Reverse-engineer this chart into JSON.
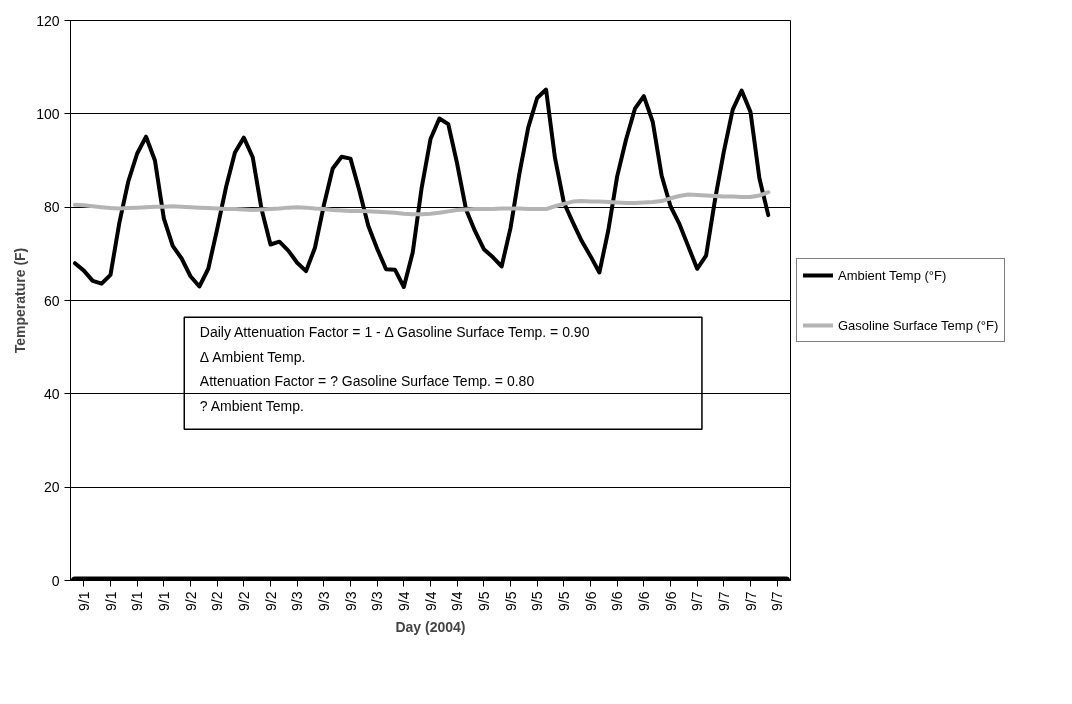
{
  "chart_data": {
    "type": "line",
    "xlabel": "Day (2004)",
    "ylabel": "Temperature (F)",
    "ylim": [
      0,
      120
    ],
    "yticks": [
      0,
      20,
      40,
      60,
      80,
      100,
      120
    ],
    "categories": [
      null,
      "9/1",
      null,
      null,
      "9/1",
      null,
      null,
      "9/1",
      null,
      null,
      "9/1",
      null,
      null,
      "9/2",
      null,
      null,
      "9/2",
      null,
      null,
      "9/2",
      null,
      null,
      "9/2",
      null,
      null,
      "9/3",
      null,
      null,
      "9/3",
      null,
      null,
      "9/3",
      null,
      null,
      "9/3",
      null,
      null,
      "9/4",
      null,
      null,
      "9/4",
      null,
      null,
      "9/4",
      null,
      null,
      "9/5",
      null,
      null,
      "9/5",
      null,
      null,
      "9/5",
      null,
      null,
      "9/5",
      null,
      null,
      "9/6",
      null,
      null,
      "9/6",
      null,
      null,
      "9/6",
      null,
      null,
      "9/6",
      null,
      null,
      "9/7",
      null,
      null,
      "9/7",
      null,
      null,
      "9/7",
      null,
      null,
      "9/7",
      null
    ],
    "grid": "y",
    "legend": "right",
    "marker": "none",
    "line_style": "solid",
    "series": [
      {
        "name": "Ambient Temp (°F)",
        "color": "#000000",
        "values": [
          68,
          66.4,
          64.2,
          63.6,
          65.5,
          76.7,
          85.5,
          91.5,
          95.1,
          90,
          77.6,
          71.7,
          69,
          65.2,
          63,
          66.8,
          75.3,
          84.3,
          91.7,
          94.9,
          90.7,
          79.5,
          72,
          72.6,
          70.7,
          68.1,
          66.3,
          71.3,
          80.4,
          88.3,
          90.8,
          90.4,
          83.5,
          76,
          71.1,
          66.7,
          66.6,
          62.9,
          70.3,
          84.1,
          94.6,
          99,
          97.8,
          89.3,
          79.5,
          74.9,
          71,
          69.3,
          67.3,
          75.5,
          87.2,
          97.1,
          103.4,
          105.2,
          90.6,
          81,
          76.8,
          72.8,
          69.5,
          66,
          75,
          86.6,
          94.5,
          101.1,
          103.8,
          98.3,
          86.8,
          80.2,
          76.4,
          71.6,
          66.8,
          69.6,
          81.5,
          91.9,
          100.9,
          105,
          100.4,
          86.2,
          78.3,
          null,
          null
        ]
      },
      {
        "name": "Gasoline Surface Temp (°F)",
        "color": "#b4b4b4",
        "values": [
          80.5,
          80.4,
          80.2,
          80.0,
          79.8,
          79.7,
          79.8,
          79.9,
          80.0,
          80.1,
          80.1,
          80.2,
          80.1,
          80.0,
          79.9,
          79.8,
          79.7,
          79.6,
          79.6,
          79.5,
          79.4,
          79.5,
          79.6,
          79.7,
          79.9,
          80.0,
          79.9,
          79.7,
          79.6,
          79.4,
          79.3,
          79.2,
          79.2,
          79.1,
          79.0,
          78.9,
          78.8,
          78.6,
          78.5,
          78.5,
          78.6,
          78.8,
          79.1,
          79.4,
          79.5,
          79.6,
          79.6,
          79.6,
          79.7,
          79.7,
          79.7,
          79.6,
          79.6,
          79.6,
          80.2,
          80.7,
          81.2,
          81.3,
          81.2,
          81.2,
          81.1,
          81.0,
          80.9,
          80.9,
          81.0,
          81.1,
          81.3,
          81.9,
          82.4,
          82.7,
          82.6,
          82.5,
          82.4,
          82.3,
          82.3,
          82.2,
          82.2,
          82.5,
          83.2,
          null,
          null
        ]
      },
      {
        "color": "#000000",
        "values": [
          0,
          0,
          0,
          0,
          0,
          0,
          0,
          0,
          0,
          0,
          0,
          0,
          0,
          0,
          0,
          0,
          0,
          0,
          0,
          0,
          0,
          0,
          0,
          0,
          0,
          0,
          0,
          0,
          0,
          0,
          0,
          0,
          0,
          0,
          0,
          0,
          0,
          0,
          0,
          0,
          0,
          0,
          0,
          0,
          0,
          0,
          0,
          0,
          0,
          0,
          0,
          0,
          0,
          0,
          0,
          0,
          0,
          0,
          0,
          0,
          0,
          0,
          0,
          0,
          0,
          0,
          0,
          0,
          0,
          0,
          0,
          0,
          0,
          0,
          0,
          0,
          0,
          0,
          0,
          0,
          0
        ]
      }
    ],
    "annotations": [
      "Daily Attenuation Factor = 1 - Δ Gasoline Surface Temp. = 0.90",
      "Δ Ambient Temp.",
      "Attenuation Factor = ? Gasoline Surface Temp. = 0.80",
      "? Ambient Temp."
    ]
  }
}
